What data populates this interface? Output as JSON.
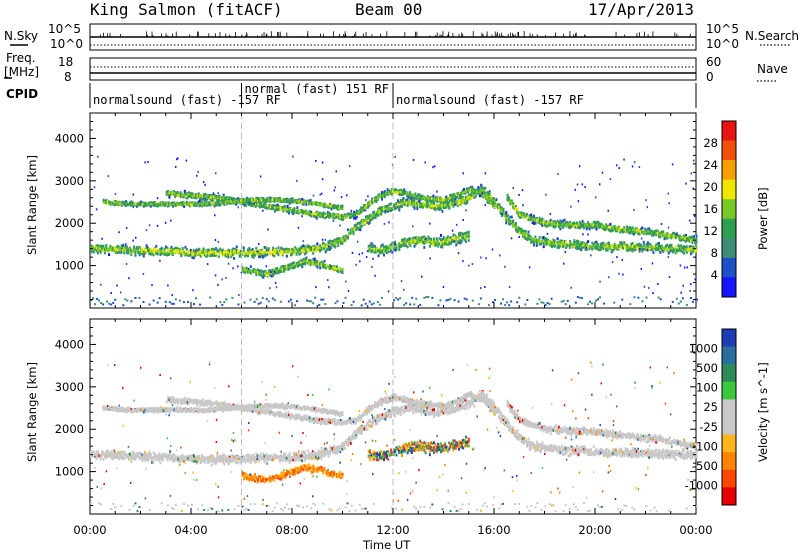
{
  "header": {
    "station": "King Salmon (fitACF)",
    "beam": "Beam 00",
    "date": "17/Apr/2013"
  },
  "nsky_strip": {
    "left_label": "N.Sky",
    "right_label": "N.Search",
    "left_ticks": [
      "10^5",
      "10^0"
    ],
    "right_ticks": [
      "10^5",
      "10^0"
    ]
  },
  "freq_strip": {
    "left_label_1": "Freq.",
    "left_label_2": "[MHz]",
    "right_label": "Nave",
    "left_ticks": [
      "18",
      "8"
    ],
    "right_ticks": [
      "60",
      "0"
    ]
  },
  "cpid": {
    "label": "CPID",
    "segments": [
      {
        "start": 0,
        "end": 6.0,
        "text": "normalsound (fast) -157 RF"
      },
      {
        "start": 6.0,
        "end": 12.0,
        "text": "normal (fast) 151 RF"
      },
      {
        "start": 12.0,
        "end": 24.0,
        "text": "normalsound (fast) -157 RF"
      }
    ]
  },
  "power_panel": {
    "ylabel": "Slant Range [km]",
    "colorbar_label": "Power [dB]",
    "colorbar_ticks": [
      "28",
      "24",
      "20",
      "16",
      "12",
      "8",
      "4"
    ],
    "colors": [
      "#e81414",
      "#f0500a",
      "#f5a000",
      "#f0e600",
      "#78c828",
      "#2da050",
      "#3c8c78",
      "#1e50c8",
      "#1414ff"
    ]
  },
  "velocity_panel": {
    "ylabel": "Slant Range [km]",
    "colorbar_label": "Velocity [m s^-1]",
    "colorbar_ticks": [
      "1000",
      "500",
      "100",
      "25",
      "-25",
      "-100",
      "-500",
      "-1000"
    ],
    "colors": [
      "#1e3cb4",
      "#2a6e9e",
      "#2e8b57",
      "#3cc83c",
      "#c8c8c8",
      "#c8c8c8",
      "#ffb41e",
      "#ff8200",
      "#ff4600",
      "#e60000"
    ]
  },
  "x_axis": {
    "label": "Time UT",
    "ticks": [
      "00:00",
      "04:00",
      "08:00",
      "12:00",
      "16:00",
      "20:00",
      "00:00"
    ]
  },
  "chart_data": {
    "type": "heatmap",
    "x_range_hours": [
      0,
      24
    ],
    "ylim_km": [
      0,
      4600
    ],
    "y_ticks_km": [
      1000,
      2000,
      3000,
      4000
    ],
    "power_range_db": [
      0,
      30
    ],
    "velocity_range_ms": [
      -1000,
      1000
    ],
    "echo_bands": [
      {
        "name": "main",
        "points": [
          [
            0,
            1400
          ],
          [
            1,
            1380
          ],
          [
            2,
            1350
          ],
          [
            3,
            1330
          ],
          [
            4,
            1300
          ],
          [
            5,
            1300
          ],
          [
            6,
            1300
          ],
          [
            7,
            1320
          ],
          [
            8,
            1330
          ],
          [
            9,
            1400
          ],
          [
            10,
            1600
          ],
          [
            10.5,
            1900
          ],
          [
            11,
            2100
          ],
          [
            11.5,
            2300
          ],
          [
            12,
            2400
          ],
          [
            12.5,
            2500
          ],
          [
            13,
            2450
          ],
          [
            13.5,
            2400
          ],
          [
            14,
            2420
          ],
          [
            14.5,
            2480
          ],
          [
            15,
            2600
          ],
          [
            15.5,
            2800
          ],
          [
            16,
            2500
          ],
          [
            16.5,
            2100
          ],
          [
            17,
            1800
          ],
          [
            17.5,
            1600
          ],
          [
            18,
            1550
          ],
          [
            19,
            1500
          ],
          [
            20,
            1450
          ],
          [
            21,
            1450
          ],
          [
            22,
            1430
          ],
          [
            23,
            1400
          ],
          [
            24,
            1380
          ]
        ],
        "width": 170
      },
      {
        "name": "upper",
        "points": [
          [
            3,
            2700
          ],
          [
            4,
            2650
          ],
          [
            5,
            2600
          ],
          [
            6,
            2500
          ],
          [
            7,
            2400
          ],
          [
            8,
            2300
          ],
          [
            9,
            2200
          ],
          [
            10,
            2150
          ],
          [
            10.5,
            2200
          ],
          [
            11,
            2450
          ],
          [
            11.5,
            2650
          ],
          [
            12,
            2750
          ],
          [
            12.5,
            2700
          ],
          [
            13,
            2600
          ],
          [
            14,
            2550
          ],
          [
            14.5,
            2650
          ],
          [
            15,
            2800
          ],
          [
            15.5,
            2700
          ],
          [
            16,
            2400
          ]
        ],
        "width": 110
      },
      {
        "name": "upper-left",
        "points": [
          [
            0.5,
            2500
          ],
          [
            1.5,
            2450
          ],
          [
            2.5,
            2450
          ],
          [
            3.5,
            2450
          ],
          [
            4.5,
            2450
          ],
          [
            5.5,
            2500
          ],
          [
            6.5,
            2550
          ],
          [
            7.5,
            2550
          ],
          [
            8.5,
            2500
          ],
          [
            9.5,
            2400
          ],
          [
            10,
            2350
          ]
        ],
        "width": 80
      },
      {
        "name": "evening",
        "points": [
          [
            16.5,
            2600
          ],
          [
            17,
            2200
          ],
          [
            18,
            2000
          ],
          [
            19,
            1950
          ],
          [
            20,
            1950
          ],
          [
            21,
            1850
          ],
          [
            22,
            1800
          ],
          [
            23,
            1700
          ],
          [
            24,
            1600
          ]
        ],
        "width": 130
      },
      {
        "name": "loop",
        "points": [
          [
            11,
            1400
          ],
          [
            11.5,
            1350
          ],
          [
            12,
            1450
          ],
          [
            12.5,
            1550
          ],
          [
            13,
            1600
          ],
          [
            13.5,
            1550
          ],
          [
            14,
            1550
          ],
          [
            14.5,
            1650
          ],
          [
            15,
            1700
          ]
        ],
        "width": 200
      },
      {
        "name": "low",
        "points": [
          [
            6,
            900
          ],
          [
            6.5,
            850
          ],
          [
            7,
            800
          ],
          [
            7.5,
            900
          ],
          [
            8,
            1000
          ],
          [
            8.5,
            1100
          ],
          [
            9,
            1050
          ],
          [
            9.5,
            950
          ],
          [
            10,
            900
          ]
        ],
        "width": 130
      }
    ]
  }
}
